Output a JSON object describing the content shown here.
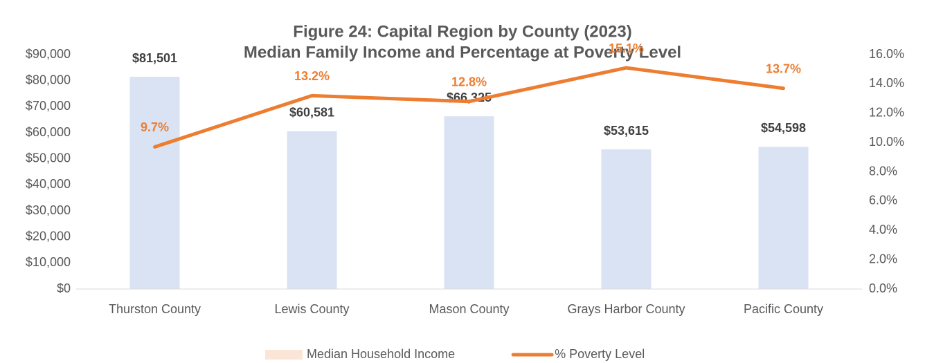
{
  "chart_data": {
    "type": "bar",
    "title": "Figure 24: Capital Region by County (2023)",
    "subtitle": "Median Family Income and Percentage at Poverty Level",
    "categories": [
      "Thurston County",
      "Lewis County",
      "Mason County",
      "Grays Harbor County",
      "Pacific County"
    ],
    "series": [
      {
        "name": "Median Household Income",
        "type": "bar",
        "color": "#dae3f3",
        "legend_color": "#fbe5d6",
        "values": [
          81501,
          60581,
          66325,
          53615,
          54598
        ],
        "value_labels": [
          "$81,501",
          "$60,581",
          "$66,325",
          "$53,615",
          "$54,598"
        ]
      },
      {
        "name": "% Poverty Level",
        "type": "line",
        "axis": "y2",
        "color": "#ed7d31",
        "values": [
          9.7,
          13.2,
          12.8,
          15.1,
          13.7
        ],
        "value_labels": [
          "9.7%",
          "13.2%",
          "12.8%",
          "15.1%",
          "13.7%"
        ]
      }
    ],
    "ylim": [
      0,
      90000
    ],
    "yticks": [
      {
        "value": 0,
        "label": "$0"
      },
      {
        "value": 10000,
        "label": "$10,000"
      },
      {
        "value": 20000,
        "label": "$20,000"
      },
      {
        "value": 30000,
        "label": "$30,000"
      },
      {
        "value": 40000,
        "label": "$40,000"
      },
      {
        "value": 50000,
        "label": "$50,000"
      },
      {
        "value": 60000,
        "label": "$60,000"
      },
      {
        "value": 70000,
        "label": "$70,000"
      },
      {
        "value": 80000,
        "label": "$80,000"
      },
      {
        "value": 90000,
        "label": "$90,000"
      }
    ],
    "y2lim": [
      0,
      16
    ],
    "y2ticks": [
      {
        "value": 0,
        "label": "0.0%"
      },
      {
        "value": 2,
        "label": "2.0%"
      },
      {
        "value": 4,
        "label": "4.0%"
      },
      {
        "value": 6,
        "label": "6.0%"
      },
      {
        "value": 8,
        "label": "8.0%"
      },
      {
        "value": 10,
        "label": "10.0%"
      },
      {
        "value": 12,
        "label": "12.0%"
      },
      {
        "value": 14,
        "label": "14.0%"
      },
      {
        "value": 16,
        "label": "16.0%"
      }
    ],
    "grid": false,
    "legend": "bottom"
  }
}
